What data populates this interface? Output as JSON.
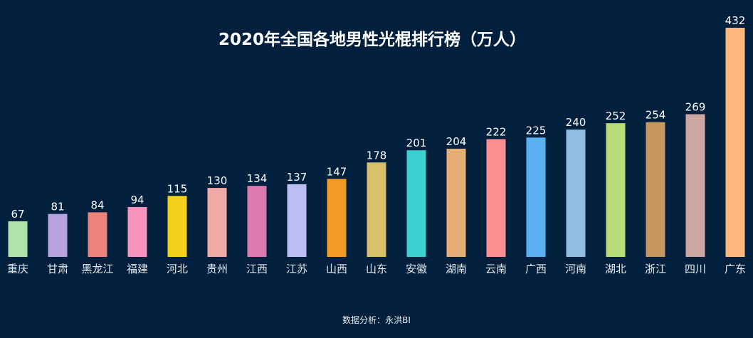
{
  "chart_data": {
    "type": "bar",
    "title": "2020年全国各地男性光棍排行榜（万人）",
    "categories": [
      "重庆",
      "甘肃",
      "黑龙江",
      "福建",
      "河北",
      "贵州",
      "江西",
      "江苏",
      "山西",
      "山东",
      "安徽",
      "湖南",
      "云南",
      "广西",
      "河南",
      "湖北",
      "浙江",
      "四川",
      "广东"
    ],
    "values": [
      67,
      81,
      84,
      94,
      115,
      130,
      134,
      137,
      147,
      178,
      201,
      204,
      222,
      225,
      240,
      252,
      254,
      269,
      432
    ],
    "colors": [
      "#b0e3ab",
      "#b6a3de",
      "#ec837a",
      "#f894bb",
      "#f2d01c",
      "#f0aaa6",
      "#dc7aad",
      "#bbbdf3",
      "#f39a22",
      "#d8bf6a",
      "#3bcfcf",
      "#e6ad76",
      "#fb8e93",
      "#5ab1ef",
      "#8fbee0",
      "#b8db77",
      "#c5975f",
      "#cda6a1",
      "#ffb77f"
    ],
    "ylim": [
      0,
      432
    ],
    "grid": false,
    "legend": "none",
    "xlabel": "",
    "ylabel": ""
  },
  "footer": "数据分析：永洪BI",
  "background": "#00203d"
}
